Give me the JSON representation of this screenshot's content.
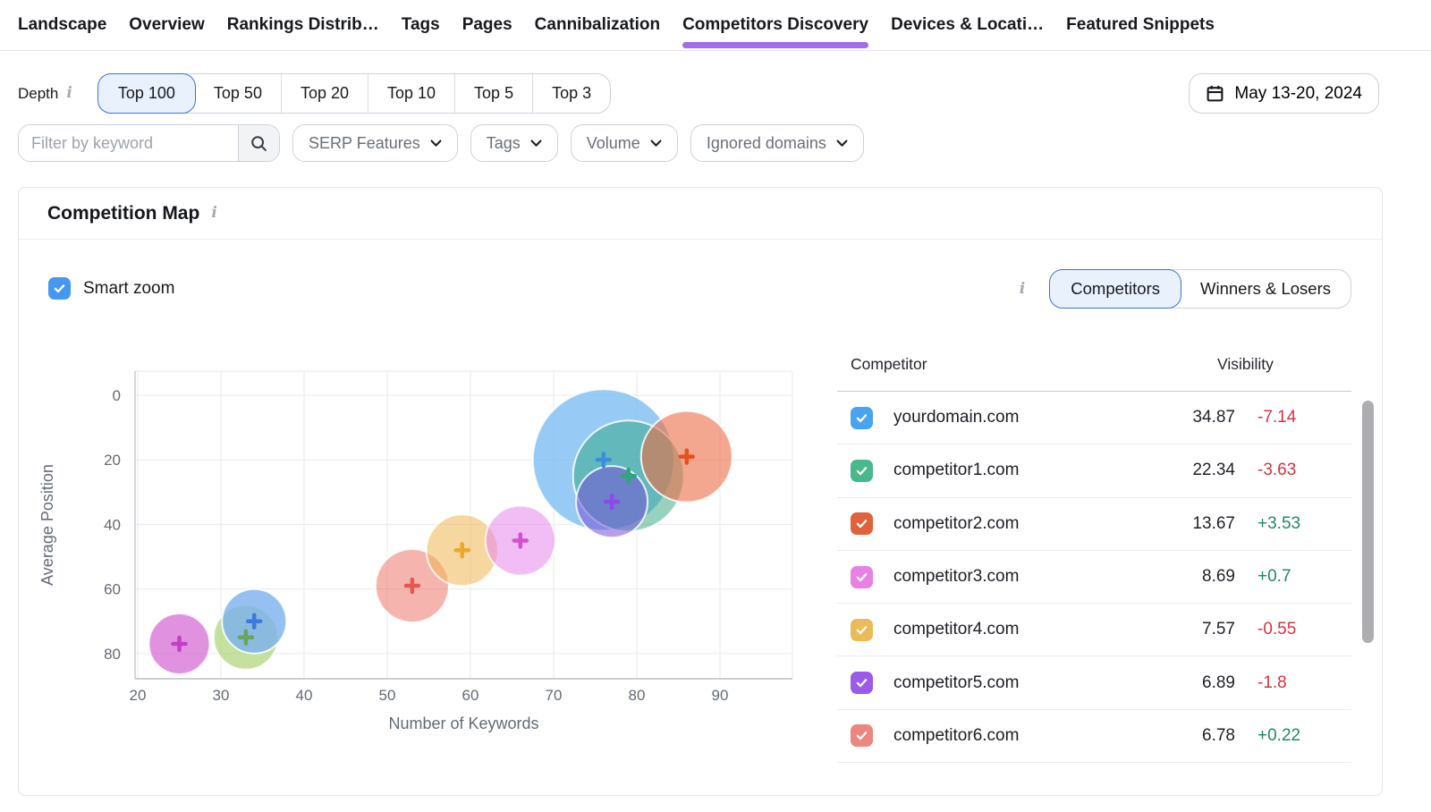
{
  "nav": {
    "tabs": [
      {
        "label": "Landscape",
        "active": false
      },
      {
        "label": "Overview",
        "active": false
      },
      {
        "label": "Rankings Distrib…",
        "active": false
      },
      {
        "label": "Tags",
        "active": false
      },
      {
        "label": "Pages",
        "active": false
      },
      {
        "label": "Cannibalization",
        "active": false
      },
      {
        "label": "Competitors Discovery",
        "active": true
      },
      {
        "label": "Devices & Locati…",
        "active": false
      },
      {
        "label": "Featured Snippets",
        "active": false
      }
    ],
    "active_underline_color": "#A46BEC"
  },
  "toolbar": {
    "depth_label": "Depth",
    "depth_options": [
      {
        "label": "Top 100",
        "selected": true
      },
      {
        "label": "Top 50",
        "selected": false
      },
      {
        "label": "Top 20",
        "selected": false
      },
      {
        "label": "Top 10",
        "selected": false
      },
      {
        "label": "Top 5",
        "selected": false
      },
      {
        "label": "Top 3",
        "selected": false
      }
    ],
    "date_range": "May 13-20, 2024"
  },
  "filters": {
    "keyword_placeholder": "Filter by keyword",
    "dropdowns": [
      "SERP Features",
      "Tags",
      "Volume",
      "Ignored domains"
    ]
  },
  "card": {
    "title": "Competition Map",
    "smart_zoom_label": "Smart zoom",
    "smart_zoom_checked": true,
    "smart_zoom_color": "#4597F0",
    "view_toggle": [
      {
        "label": "Competitors",
        "selected": true
      },
      {
        "label": "Winners & Losers",
        "selected": false
      }
    ]
  },
  "table": {
    "columns": [
      "Competitor",
      "Visibility"
    ],
    "rows": [
      {
        "domain": "yourdomain.com",
        "color": "#49A3EE",
        "visibility": "34.87",
        "change": "-7.14",
        "trend": "down"
      },
      {
        "domain": "competitor1.com",
        "color": "#49B98B",
        "visibility": "22.34",
        "change": "-3.63",
        "trend": "down"
      },
      {
        "domain": "competitor2.com",
        "color": "#E2603A",
        "visibility": "13.67",
        "change": "+3.53",
        "trend": "up"
      },
      {
        "domain": "competitor3.com",
        "color": "#E881E2",
        "visibility": "8.69",
        "change": "+0.7",
        "trend": "up"
      },
      {
        "domain": "competitor4.com",
        "color": "#ECBA57",
        "visibility": "7.57",
        "change": "-0.55",
        "trend": "down"
      },
      {
        "domain": "competitor5.com",
        "color": "#9A5BE8",
        "visibility": "6.89",
        "change": "-1.8",
        "trend": "down"
      },
      {
        "domain": "competitor6.com",
        "color": "#ED8580",
        "visibility": "6.78",
        "change": "+0.22",
        "trend": "up"
      }
    ],
    "trend_colors": {
      "up": "#1E8A60",
      "down": "#D4333F"
    }
  },
  "chart_data": {
    "type": "scatter",
    "subtype": "bubble",
    "title": "Competition Map",
    "xlabel": "Number of Keywords",
    "ylabel": "Average Position",
    "xlim": [
      18,
      99
    ],
    "ylim": [
      -8,
      88
    ],
    "y_inverted": true,
    "grid": true,
    "x_ticks": [
      20,
      30,
      40,
      50,
      60,
      70,
      80,
      90
    ],
    "y_ticks": [
      0,
      20,
      40,
      60,
      80
    ],
    "bubbles": [
      {
        "name": "",
        "x": 25,
        "y": 77,
        "r": 34,
        "fill": "rgba(214,110,214,0.75)",
        "marker": "#C43EC6"
      },
      {
        "name": "",
        "x": 33,
        "y": 75,
        "r": 36,
        "fill": "rgba(172,212,118,0.70)",
        "marker": "#69A55A"
      },
      {
        "name": "",
        "x": 34,
        "y": 70,
        "r": 36,
        "fill": "rgba(122,176,238,0.80)",
        "marker": "#3C79DE"
      },
      {
        "name": "competitor6.com",
        "x": 53,
        "y": 59,
        "r": 41,
        "fill": "rgba(238,118,108,0.55)",
        "marker": "#E25A50"
      },
      {
        "name": "competitor4.com",
        "x": 59,
        "y": 48,
        "r": 40,
        "fill": "rgba(240,183,82,0.55)",
        "marker": "#EBA928"
      },
      {
        "name": "competitor3.com",
        "x": 66,
        "y": 45,
        "r": 39,
        "fill": "rgba(231,133,235,0.55)",
        "marker": "#D44FD4"
      },
      {
        "name": "yourdomain.com",
        "x": 76,
        "y": 20,
        "r": 79,
        "fill": "rgba(125,190,242,0.80)",
        "marker": "#3B8FD6"
      },
      {
        "name": "competitor1.com",
        "x": 79,
        "y": 25,
        "r": 62,
        "fill": "rgba(47,165,131,0.50)",
        "marker": "#2FA579"
      },
      {
        "name": "competitor5.com",
        "x": 77,
        "y": 33,
        "r": 40,
        "fill": "rgba(118,84,214,0.55)",
        "marker": "#8A4BE8"
      },
      {
        "name": "competitor2.com",
        "x": 86,
        "y": 19,
        "r": 51,
        "fill": "rgba(235,109,66,0.60)",
        "marker": "#E8501E"
      }
    ]
  }
}
